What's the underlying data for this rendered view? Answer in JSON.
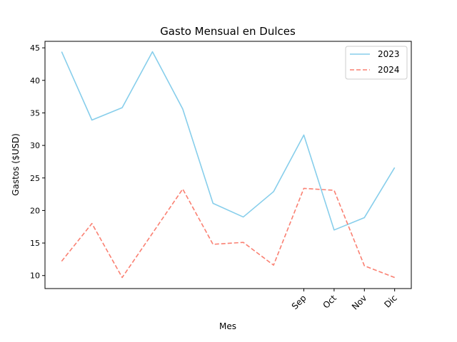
{
  "chart_data": {
    "type": "line",
    "title": "Gasto Mensual en Dulces",
    "xlabel": "Mes",
    "ylabel": "Gastos ($USD)",
    "x": [
      1,
      2,
      3,
      4,
      5,
      6,
      7,
      8,
      9,
      10,
      11,
      12
    ],
    "x_tick_labels": [
      {
        "x": 9,
        "label": "Sep"
      },
      {
        "x": 10,
        "label": "Oct"
      },
      {
        "x": 11,
        "label": "Nov"
      },
      {
        "x": 12,
        "label": "Dic"
      }
    ],
    "yticks": [
      10,
      15,
      20,
      25,
      30,
      35,
      40,
      45
    ],
    "xlim": [
      0.45,
      12.55
    ],
    "ylim": [
      8.0,
      46.0
    ],
    "grid": false,
    "legend_position": "top-right",
    "series": [
      {
        "name": "2023",
        "color": "#87CEEB",
        "line_style": "solid",
        "values": [
          44.4,
          33.9,
          35.8,
          44.4,
          35.6,
          21.1,
          19.0,
          22.9,
          31.6,
          17.0,
          18.9,
          26.6
        ]
      },
      {
        "name": "2024",
        "color": "#FA8072",
        "line_style": "dashed",
        "values": [
          12.2,
          18.0,
          9.7,
          16.5,
          23.3,
          14.8,
          15.1,
          11.6,
          23.4,
          23.1,
          11.5,
          9.7
        ]
      }
    ]
  }
}
